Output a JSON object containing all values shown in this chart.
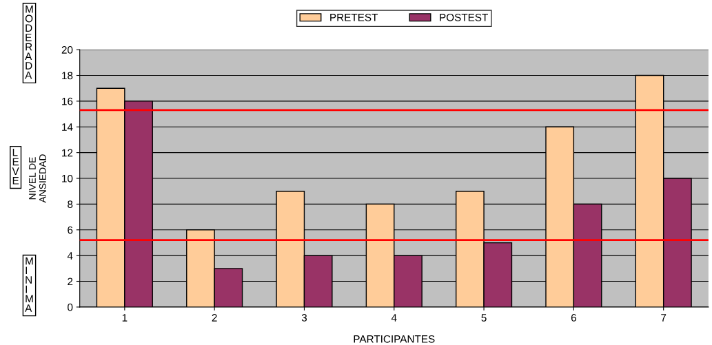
{
  "chart_data": {
    "type": "bar",
    "xlabel": "PARTICIPANTES",
    "ylabel": "NIVEL DE\nANSIEDAD",
    "categories": [
      "1",
      "2",
      "3",
      "4",
      "5",
      "6",
      "7"
    ],
    "series": [
      {
        "name": "PRETEST",
        "color": "#ffcc99",
        "values": [
          17,
          6,
          9,
          8,
          9,
          14,
          18
        ]
      },
      {
        "name": "POSTEST",
        "color": "#993366",
        "values": [
          16,
          3,
          4,
          4,
          5,
          8,
          10
        ]
      }
    ],
    "ylim": [
      0,
      20
    ],
    "yticks": [
      0,
      2,
      4,
      6,
      8,
      10,
      12,
      14,
      16,
      18,
      20
    ],
    "grid": "y",
    "legend": "top",
    "ref_lines": [
      {
        "axis": "y",
        "value": 15.3,
        "color": "#ff0000"
      },
      {
        "axis": "y",
        "value": 5.2,
        "color": "#ff0000"
      }
    ],
    "annotations": [
      "MODERADA",
      "LEVE",
      "MINIMA"
    ]
  }
}
